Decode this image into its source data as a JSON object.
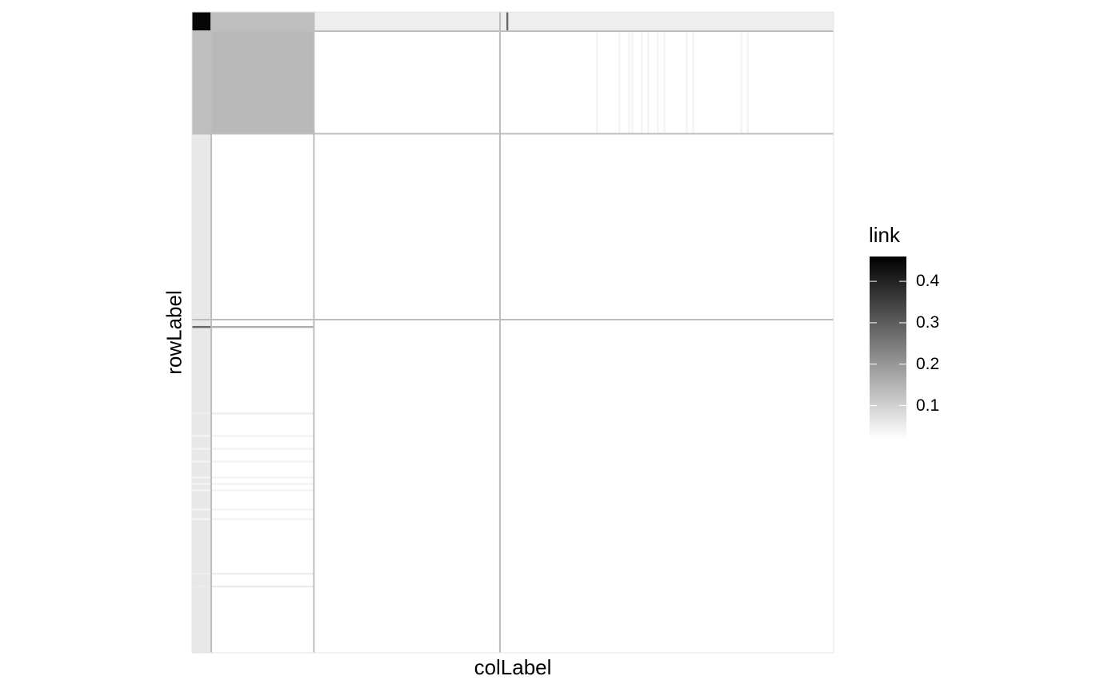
{
  "chart_data": {
    "type": "heatmap",
    "title": "",
    "xlabel": "colLabel",
    "ylabel": "rowLabel",
    "legend": {
      "title": "link",
      "placement": "right",
      "breaks": [
        0.1,
        0.2,
        0.3,
        0.4
      ],
      "break_labels": [
        "0.1",
        "0.2",
        "0.3",
        "0.4"
      ],
      "range": [
        0.02,
        0.46
      ],
      "low_color": "#ffffff",
      "high_color": "#000000"
    },
    "grid": false,
    "block_boundaries": [
      0,
      6,
      38,
      96,
      200
    ],
    "row_special_links": [
      0.14,
      0.02,
      0.014,
      0.02,
      0.015,
      0.02,
      0.016,
      0.02,
      0.014,
      0.02,
      0.02,
      0.02,
      0.018,
      0.02,
      0.016,
      0.02,
      0.02,
      0.014,
      0.02
    ],
    "blocks": [
      {
        "rows": [
          0,
          6
        ],
        "cols": [
          0,
          6
        ],
        "link": 0.45
      },
      {
        "rows": [
          0,
          6
        ],
        "cols": [
          6,
          38
        ],
        "link": 0.13
      },
      {
        "rows": [
          0,
          6
        ],
        "cols": [
          38,
          200
        ],
        "link": 0.05
      },
      {
        "rows": [
          6,
          38
        ],
        "cols": [
          0,
          6
        ],
        "link": 0.13
      },
      {
        "rows": [
          6,
          38
        ],
        "cols": [
          6,
          38
        ],
        "link": 0.14
      },
      {
        "rows": [
          6,
          38
        ],
        "cols": [
          38,
          200
        ],
        "link": 0.005
      },
      {
        "rows": [
          38,
          200
        ],
        "cols": [
          0,
          6
        ],
        "link": 0.06
      },
      {
        "rows": [
          38,
          200
        ],
        "cols": [
          6,
          38
        ],
        "link": 0.005
      },
      {
        "rows": [
          38,
          200
        ],
        "cols": [
          38,
          200
        ],
        "link": 0.012
      }
    ]
  }
}
